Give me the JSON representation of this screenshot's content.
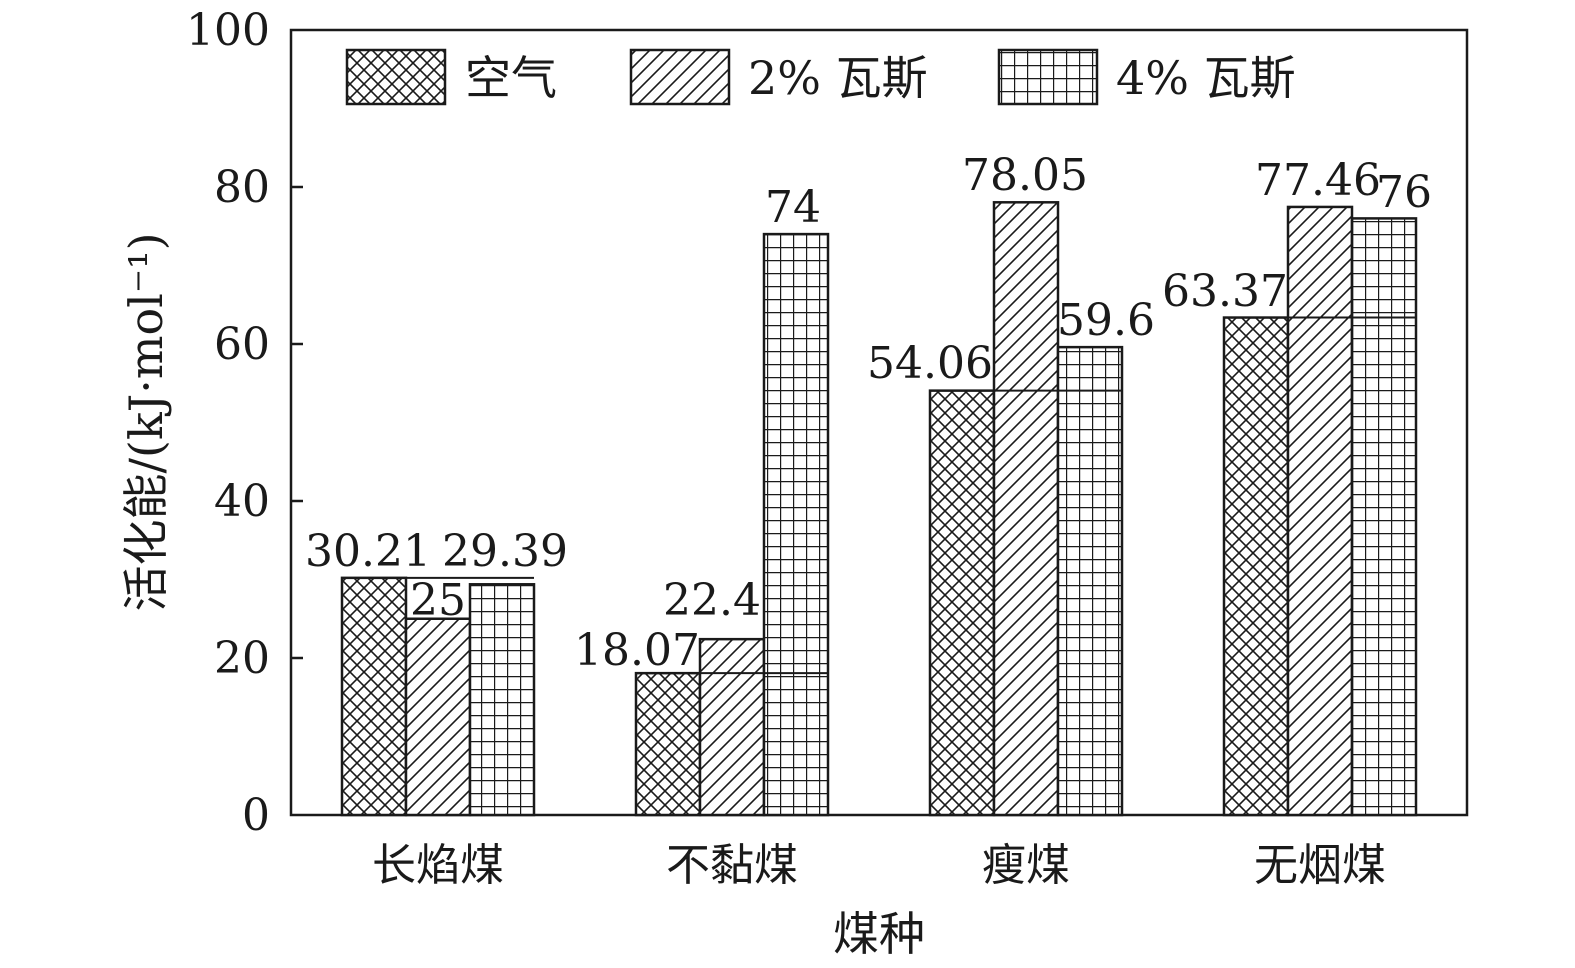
{
  "chart_data": {
    "type": "bar",
    "xlabel": "煤种",
    "ylabel": "活化能/(kJ·mol⁻¹)",
    "ylim": [
      0,
      100
    ],
    "yticks": [
      0,
      20,
      40,
      60,
      80,
      100
    ],
    "categories": [
      "长焰煤",
      "不黏煤",
      "瘦煤",
      "无烟煤"
    ],
    "series": [
      {
        "name": "空气",
        "values": [
          30.21,
          18.07,
          54.06,
          63.37
        ],
        "labels": [
          "30.21",
          "18.07",
          "54.06",
          "63.37"
        ],
        "pattern": "crosshatch"
      },
      {
        "name": "2% 瓦斯",
        "values": [
          25,
          22.4,
          78.05,
          77.46
        ],
        "labels": [
          "25",
          "22.4",
          "78.05",
          "77.46"
        ],
        "pattern": "diagonal"
      },
      {
        "name": "4% 瓦斯",
        "values": [
          29.39,
          74,
          59.6,
          76
        ],
        "labels": [
          "29.39",
          "74",
          "59.6",
          "76"
        ],
        "pattern": "grid"
      }
    ],
    "legend": "top",
    "grid": false
  }
}
